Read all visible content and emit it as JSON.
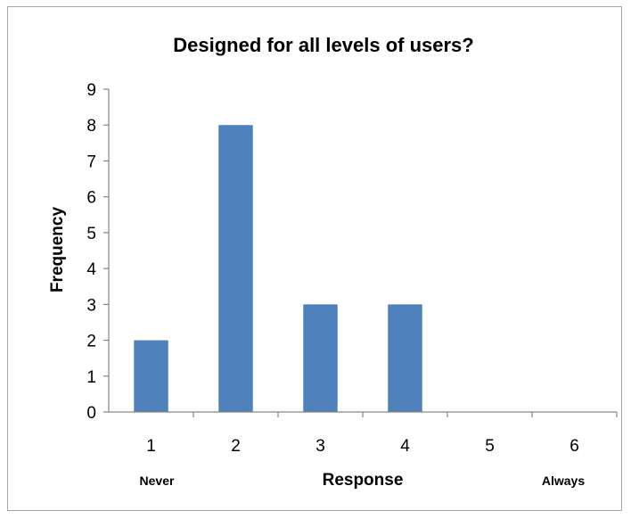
{
  "chart_data": {
    "type": "bar",
    "title": "Designed for all levels of users?",
    "xlabel": "Response",
    "ylabel": "Frequency",
    "categories": [
      "1",
      "2",
      "3",
      "4",
      "5",
      "6"
    ],
    "values": [
      2,
      8,
      3,
      3,
      0,
      0
    ],
    "ylim": [
      0,
      9
    ],
    "yticks": [
      0,
      1,
      2,
      3,
      4,
      5,
      6,
      7,
      8,
      9
    ],
    "endpoint_labels": {
      "left": "Never",
      "right": "Always"
    },
    "grid": false,
    "legend": "none",
    "bar_color": "#4f81bd"
  }
}
